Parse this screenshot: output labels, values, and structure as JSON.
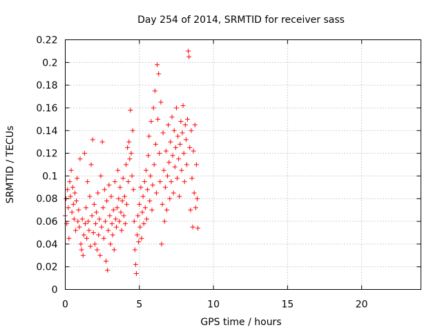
{
  "chart_data": {
    "type": "scatter",
    "title": "Day 254 of 2014, SRMTID for receiver sass",
    "xlabel": "GPS time / hours",
    "ylabel": "SRMTID / TECUs",
    "xlim": [
      0,
      24
    ],
    "ylim": [
      0,
      0.22
    ],
    "xticks": [
      0,
      5,
      10,
      15,
      20
    ],
    "yticks": [
      0,
      0.02,
      0.04,
      0.06,
      0.08,
      0.1,
      0.12,
      0.14,
      0.16,
      0.18,
      0.2,
      0.22
    ],
    "xtick_labels": [
      "0",
      "5",
      "10",
      "15",
      "20"
    ],
    "ytick_labels": [
      "0",
      "0.02",
      "0.04",
      "0.06",
      "0.08",
      "0.1",
      "0.12",
      "0.14",
      "0.16",
      "0.18",
      "0.2",
      "0.22"
    ],
    "grid": true,
    "marker": "+",
    "color": "#ff0000",
    "series": [
      {
        "name": "SRMTID",
        "points": [
          [
            0.0,
            0.065
          ],
          [
            0.05,
            0.08
          ],
          [
            0.1,
            0.058
          ],
          [
            0.15,
            0.088
          ],
          [
            0.2,
            0.072
          ],
          [
            0.25,
            0.045
          ],
          [
            0.3,
            0.095
          ],
          [
            0.35,
            0.082
          ],
          [
            0.4,
            0.105
          ],
          [
            0.45,
            0.068
          ],
          [
            0.5,
            0.09
          ],
          [
            0.55,
            0.075
          ],
          [
            0.6,
            0.062
          ],
          [
            0.65,
            0.085
          ],
          [
            0.7,
            0.052
          ],
          [
            0.75,
            0.078
          ],
          [
            0.8,
            0.098
          ],
          [
            0.85,
            0.06
          ],
          [
            0.9,
            0.07
          ],
          [
            0.95,
            0.055
          ],
          [
            1.0,
            0.115
          ],
          [
            1.05,
            0.04
          ],
          [
            1.1,
            0.035
          ],
          [
            1.15,
            0.062
          ],
          [
            1.2,
            0.03
          ],
          [
            1.25,
            0.048
          ],
          [
            1.3,
            0.12
          ],
          [
            1.35,
            0.058
          ],
          [
            1.4,
            0.072
          ],
          [
            1.45,
            0.045
          ],
          [
            1.5,
            0.095
          ],
          [
            1.55,
            0.06
          ],
          [
            1.6,
            0.052
          ],
          [
            1.65,
            0.082
          ],
          [
            1.7,
            0.038
          ],
          [
            1.75,
            0.11
          ],
          [
            1.8,
            0.065
          ],
          [
            1.85,
            0.132
          ],
          [
            1.9,
            0.05
          ],
          [
            1.95,
            0.075
          ],
          [
            2.0,
            0.04
          ],
          [
            2.05,
            0.058
          ],
          [
            2.1,
            0.068
          ],
          [
            2.15,
            0.035
          ],
          [
            2.2,
            0.085
          ],
          [
            2.25,
            0.048
          ],
          [
            2.3,
            0.062
          ],
          [
            2.35,
            0.03
          ],
          [
            2.4,
            0.1
          ],
          [
            2.45,
            0.055
          ],
          [
            2.5,
            0.13
          ],
          [
            2.55,
            0.072
          ],
          [
            2.6,
            0.045
          ],
          [
            2.65,
            0.088
          ],
          [
            2.7,
            0.06
          ],
          [
            2.75,
            0.025
          ],
          [
            2.8,
            0.078
          ],
          [
            2.85,
            0.017
          ],
          [
            2.9,
            0.052
          ],
          [
            2.95,
            0.092
          ],
          [
            3.0,
            0.065
          ],
          [
            3.05,
            0.04
          ],
          [
            3.1,
            0.082
          ],
          [
            3.15,
            0.058
          ],
          [
            3.2,
            0.048
          ],
          [
            3.25,
            0.07
          ],
          [
            3.3,
            0.035
          ],
          [
            3.35,
            0.095
          ],
          [
            3.4,
            0.062
          ],
          [
            3.45,
            0.055
          ],
          [
            3.5,
            0.072
          ],
          [
            3.55,
            0.105
          ],
          [
            3.6,
            0.08
          ],
          [
            3.65,
            0.06
          ],
          [
            3.7,
            0.09
          ],
          [
            3.75,
            0.068
          ],
          [
            3.8,
            0.052
          ],
          [
            3.85,
            0.078
          ],
          [
            3.9,
            0.098
          ],
          [
            3.95,
            0.065
          ],
          [
            4.0,
            0.082
          ],
          [
            4.05,
            0.058
          ],
          [
            4.1,
            0.11
          ],
          [
            4.15,
            0.075
          ],
          [
            4.2,
            0.125
          ],
          [
            4.25,
            0.095
          ],
          [
            4.3,
            0.13
          ],
          [
            4.35,
            0.115
          ],
          [
            4.4,
            0.158
          ],
          [
            4.45,
            0.12
          ],
          [
            4.5,
            0.1
          ],
          [
            4.55,
            0.14
          ],
          [
            4.6,
            0.088
          ],
          [
            4.65,
            0.06
          ],
          [
            4.7,
            0.035
          ],
          [
            4.75,
            0.022
          ],
          [
            4.8,
            0.014
          ],
          [
            4.85,
            0.048
          ],
          [
            4.9,
            0.065
          ],
          [
            4.95,
            0.042
          ],
          [
            5.0,
            0.075
          ],
          [
            5.05,
            0.055
          ],
          [
            5.1,
            0.09
          ],
          [
            5.15,
            0.045
          ],
          [
            5.2,
            0.068
          ],
          [
            5.25,
            0.082
          ],
          [
            5.3,
            0.058
          ],
          [
            5.35,
            0.095
          ],
          [
            5.4,
            0.072
          ],
          [
            5.45,
            0.105
          ],
          [
            5.5,
            0.062
          ],
          [
            5.55,
            0.088
          ],
          [
            5.6,
            0.118
          ],
          [
            5.65,
            0.135
          ],
          [
            5.7,
            0.078
          ],
          [
            5.75,
            0.1
          ],
          [
            5.8,
            0.148
          ],
          [
            5.85,
            0.07
          ],
          [
            5.9,
            0.092
          ],
          [
            5.95,
            0.16
          ],
          [
            6.0,
            0.11
          ],
          [
            6.05,
            0.175
          ],
          [
            6.1,
            0.128
          ],
          [
            6.15,
            0.085
          ],
          [
            6.2,
            0.198
          ],
          [
            6.25,
            0.15
          ],
          [
            6.3,
            0.19
          ],
          [
            6.35,
            0.12
          ],
          [
            6.4,
            0.095
          ],
          [
            6.45,
            0.165
          ],
          [
            6.5,
            0.04
          ],
          [
            6.55,
            0.075
          ],
          [
            6.6,
            0.138
          ],
          [
            6.65,
            0.105
          ],
          [
            6.7,
            0.06
          ],
          [
            6.75,
            0.09
          ],
          [
            6.8,
            0.122
          ],
          [
            6.85,
            0.07
          ],
          [
            6.9,
            0.1
          ],
          [
            6.95,
            0.145
          ],
          [
            7.0,
            0.112
          ],
          [
            7.05,
            0.08
          ],
          [
            7.1,
            0.13
          ],
          [
            7.15,
            0.095
          ],
          [
            7.2,
            0.152
          ],
          [
            7.25,
            0.118
          ],
          [
            7.3,
            0.085
          ],
          [
            7.35,
            0.14
          ],
          [
            7.4,
            0.108
          ],
          [
            7.45,
            0.125
          ],
          [
            7.5,
            0.16
          ],
          [
            7.55,
            0.098
          ],
          [
            7.6,
            0.135
          ],
          [
            7.65,
            0.115
          ],
          [
            7.7,
            0.082
          ],
          [
            7.75,
            0.128
          ],
          [
            7.8,
            0.148
          ],
          [
            7.85,
            0.105
          ],
          [
            7.9,
            0.138
          ],
          [
            7.95,
            0.162
          ],
          [
            8.0,
            0.12
          ],
          [
            8.05,
            0.095
          ],
          [
            8.1,
            0.145
          ],
          [
            8.15,
            0.132
          ],
          [
            8.2,
            0.11
          ],
          [
            8.25,
            0.15
          ],
          [
            8.3,
            0.21
          ],
          [
            8.35,
            0.205
          ],
          [
            8.4,
            0.125
          ],
          [
            8.45,
            0.07
          ],
          [
            8.5,
            0.14
          ],
          [
            8.55,
            0.098
          ],
          [
            8.6,
            0.055
          ],
          [
            8.65,
            0.122
          ],
          [
            8.7,
            0.085
          ],
          [
            8.75,
            0.145
          ],
          [
            8.8,
            0.072
          ],
          [
            8.85,
            0.11
          ],
          [
            8.9,
            0.08
          ],
          [
            8.95,
            0.054
          ]
        ]
      }
    ]
  }
}
